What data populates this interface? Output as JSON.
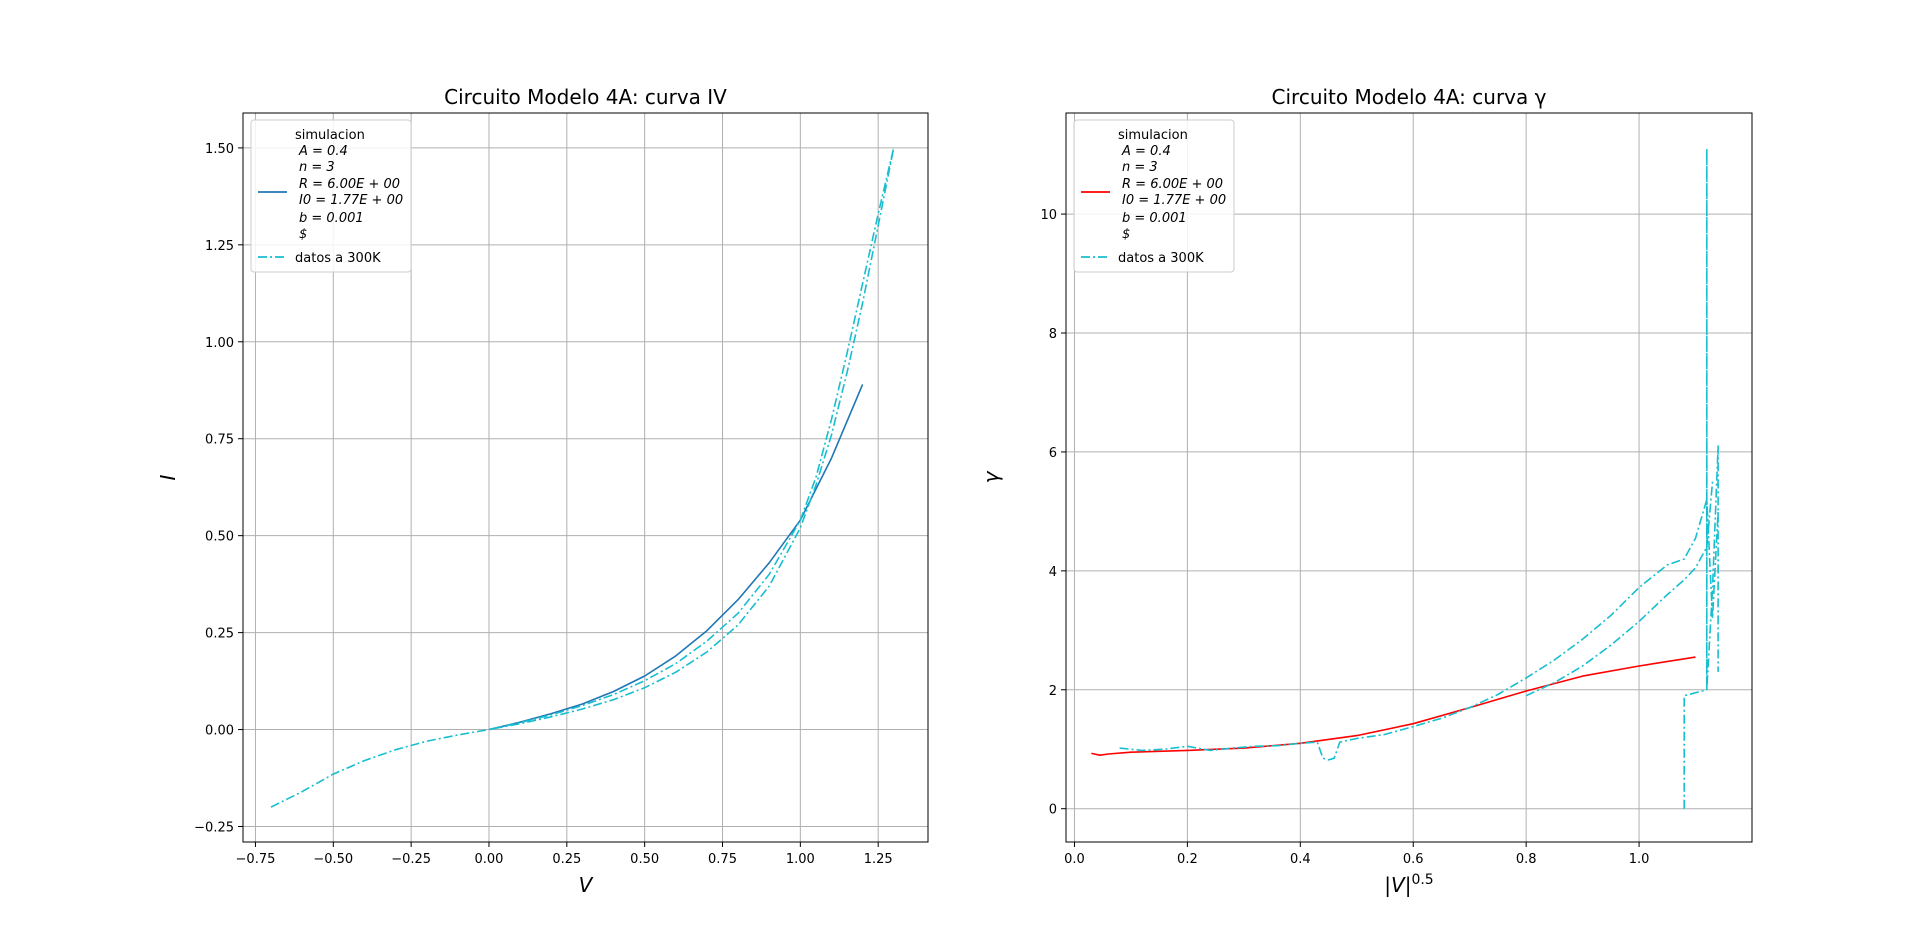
{
  "chart_data": [
    {
      "type": "line",
      "title": "Circuito Modelo 4A: curva IV",
      "xlabel": "V",
      "ylabel": "I",
      "xlim": [
        -0.79,
        1.41
      ],
      "ylim": [
        -0.29,
        1.59
      ],
      "xticks": [
        -0.75,
        -0.5,
        -0.25,
        0.0,
        0.25,
        0.5,
        0.75,
        1.0,
        1.25
      ],
      "xtick_labels": [
        "−0.75",
        "−0.50",
        "−0.25",
        "0.00",
        "0.25",
        "0.50",
        "0.75",
        "1.00",
        "1.25"
      ],
      "yticks": [
        -0.25,
        0.0,
        0.25,
        0.5,
        0.75,
        1.0,
        1.25,
        1.5
      ],
      "ytick_labels": [
        "−0.25",
        "0.00",
        "0.25",
        "0.50",
        "0.75",
        "1.00",
        "1.25",
        "1.50"
      ],
      "grid": true,
      "legend_position": "top-left",
      "legend": {
        "title": "simulacion",
        "params": [
          "A = 0.4",
          "n = 3",
          "R = 6.00E + 00",
          "I0 = 1.77E + 00",
          "b = 0.001",
          "$"
        ],
        "entries": [
          "datos a 300K"
        ]
      },
      "series": [
        {
          "style": "solid",
          "color": "#1f77b4",
          "x": [
            0.0,
            0.1,
            0.2,
            0.3,
            0.4,
            0.5,
            0.6,
            0.7,
            0.8,
            0.9,
            1.0,
            1.1,
            1.2
          ],
          "y": [
            0.0,
            0.019,
            0.041,
            0.066,
            0.098,
            0.138,
            0.19,
            0.255,
            0.335,
            0.43,
            0.54,
            0.7,
            0.89
          ]
        },
        {
          "name": "datos a 300K",
          "style": "dashdot",
          "color": "#17becf",
          "x": [
            -0.7,
            -0.6,
            -0.5,
            -0.4,
            -0.3,
            -0.2,
            -0.1,
            0.0,
            0.1,
            0.2,
            0.3,
            0.4,
            0.5,
            0.6,
            0.7,
            0.8,
            0.9,
            1.0,
            1.05,
            1.1,
            1.15,
            1.2,
            1.25,
            1.3
          ],
          "y": [
            -0.2,
            -0.16,
            -0.115,
            -0.08,
            -0.052,
            -0.03,
            -0.014,
            0.0,
            0.015,
            0.033,
            0.053,
            0.077,
            0.108,
            0.148,
            0.2,
            0.27,
            0.37,
            0.52,
            0.63,
            0.76,
            0.92,
            1.1,
            1.3,
            1.5
          ]
        },
        {
          "style": "dashdot",
          "color": "#17becf",
          "x": [
            0.0,
            0.1,
            0.2,
            0.3,
            0.4,
            0.5,
            0.6,
            0.7,
            0.8,
            0.9,
            1.0,
            1.05,
            1.1,
            1.15,
            1.2,
            1.25,
            1.3
          ],
          "y": [
            0.0,
            0.018,
            0.038,
            0.062,
            0.09,
            0.126,
            0.17,
            0.228,
            0.3,
            0.4,
            0.54,
            0.65,
            0.8,
            0.97,
            1.15,
            1.33,
            1.5
          ]
        }
      ]
    },
    {
      "type": "line",
      "title": "Circuito Modelo 4A: curva γ",
      "xlabel": "|V|^0.5",
      "ylabel": "γ",
      "xlim": [
        -0.015,
        1.2
      ],
      "ylim": [
        -0.56,
        11.7
      ],
      "xticks": [
        0.0,
        0.2,
        0.4,
        0.6,
        0.8,
        1.0
      ],
      "xtick_labels": [
        "0.0",
        "0.2",
        "0.4",
        "0.6",
        "0.8",
        "1.0"
      ],
      "yticks": [
        0,
        2,
        4,
        6,
        8,
        10
      ],
      "ytick_labels": [
        "0",
        "2",
        "4",
        "6",
        "8",
        "10"
      ],
      "grid": true,
      "legend_position": "top-left",
      "legend": {
        "title": "simulacion",
        "params": [
          "A = 0.4",
          "n = 3",
          "R = 6.00E + 00",
          "I0 = 1.77E + 00",
          "b = 0.001",
          "$"
        ],
        "entries": [
          "datos a 300K"
        ]
      },
      "series": [
        {
          "style": "solid",
          "color": "#ff0000",
          "x": [
            0.03,
            0.045,
            0.06,
            0.1,
            0.2,
            0.3,
            0.4,
            0.5,
            0.6,
            0.7,
            0.8,
            0.9,
            1.0,
            1.1
          ],
          "y": [
            0.93,
            0.9,
            0.92,
            0.95,
            0.98,
            1.02,
            1.1,
            1.23,
            1.43,
            1.7,
            1.98,
            2.23,
            2.4,
            2.55
          ]
        },
        {
          "name": "datos a 300K",
          "style": "dashdot",
          "color": "#17becf",
          "x": [
            0.08,
            0.12,
            0.16,
            0.2,
            0.24,
            0.28,
            0.32,
            0.36,
            0.4,
            0.43,
            0.44,
            0.45,
            0.46,
            0.47,
            0.5,
            0.55,
            0.6,
            0.65,
            0.7,
            0.75,
            0.8,
            0.85,
            0.9,
            0.95,
            1.0,
            1.05,
            1.08,
            1.1,
            1.12,
            1.13,
            1.14
          ],
          "y": [
            1.02,
            0.98,
            1.0,
            1.05,
            0.98,
            1.02,
            1.05,
            1.06,
            1.1,
            1.12,
            0.85,
            0.82,
            0.85,
            1.12,
            1.18,
            1.25,
            1.38,
            1.52,
            1.7,
            1.92,
            2.2,
            2.5,
            2.85,
            3.25,
            3.72,
            4.1,
            4.2,
            4.55,
            5.2,
            3.2,
            5.0
          ]
        },
        {
          "style": "dashdot",
          "color": "#17becf",
          "x": [
            0.8,
            0.85,
            0.9,
            0.95,
            1.0,
            1.05,
            1.08,
            1.1,
            1.12,
            1.13
          ],
          "y": [
            1.9,
            2.12,
            2.4,
            2.75,
            3.15,
            3.6,
            3.85,
            4.05,
            4.4,
            5.5
          ]
        },
        {
          "style": "dashdot",
          "color": "#17becf",
          "x": [
            1.08,
            1.08,
            1.12,
            1.12,
            1.12,
            1.13,
            1.14,
            1.14
          ],
          "y": [
            0.0,
            1.9,
            2.0,
            11.1,
            2.0,
            3.7,
            6.1,
            2.3
          ]
        }
      ]
    }
  ]
}
